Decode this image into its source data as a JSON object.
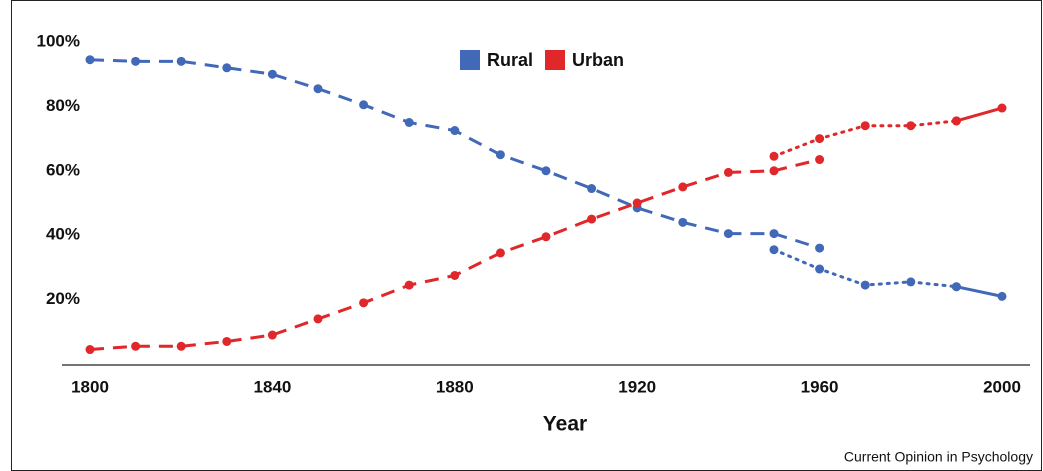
{
  "chart_data": {
    "type": "line",
    "xlabel": "Year",
    "credit": "Current Opinion in Psychology",
    "xlim": [
      1800,
      2000
    ],
    "xticks": [
      1800,
      1840,
      1880,
      1920,
      1960,
      2000
    ],
    "ylim": [
      0,
      100
    ],
    "yticks": [
      {
        "value": 20,
        "label": "20%"
      },
      {
        "value": 40,
        "label": "40%"
      },
      {
        "value": 60,
        "label": "60%"
      },
      {
        "value": 80,
        "label": "80%"
      },
      {
        "value": 100,
        "label": "100%"
      }
    ],
    "grid": false,
    "legend": "top",
    "series": [
      {
        "name": "Rural",
        "color": "#4169b8",
        "lines": [
          {
            "style": "dashed",
            "x": [
              1800,
              1810,
              1820,
              1830,
              1840,
              1850,
              1860,
              1870,
              1880,
              1890,
              1900,
              1910,
              1920,
              1930,
              1940,
              1950,
              1960
            ],
            "values": [
              94.5,
              94,
              94,
              92,
              90,
              85.5,
              80.5,
              75,
              72.5,
              65,
              60,
              54.5,
              48.5,
              44,
              40.5,
              40.5,
              36
            ]
          },
          {
            "style": "dotted",
            "x": [
              1950,
              1960,
              1970,
              1980,
              1990
            ],
            "values": [
              35.5,
              29.5,
              24.5,
              25.5,
              24
            ]
          },
          {
            "style": "solid",
            "x": [
              1990,
              2000
            ],
            "values": [
              24,
              21
            ]
          }
        ]
      },
      {
        "name": "Urban",
        "color": "#e0272a",
        "lines": [
          {
            "style": "dashed",
            "x": [
              1800,
              1810,
              1820,
              1830,
              1840,
              1850,
              1860,
              1870,
              1880,
              1890,
              1900,
              1910,
              1920,
              1930,
              1940,
              1950,
              1960
            ],
            "values": [
              4.5,
              5.5,
              5.5,
              7,
              9,
              14,
              19,
              24.5,
              27.5,
              34.5,
              39.5,
              45,
              50,
              55,
              59.5,
              60,
              63.5
            ]
          },
          {
            "style": "dotted",
            "x": [
              1950,
              1960,
              1970,
              1980,
              1990
            ],
            "values": [
              64.5,
              70,
              74,
              74,
              75.5
            ]
          },
          {
            "style": "solid",
            "x": [
              1990,
              2000
            ],
            "values": [
              75.5,
              79.5
            ]
          }
        ]
      }
    ]
  }
}
